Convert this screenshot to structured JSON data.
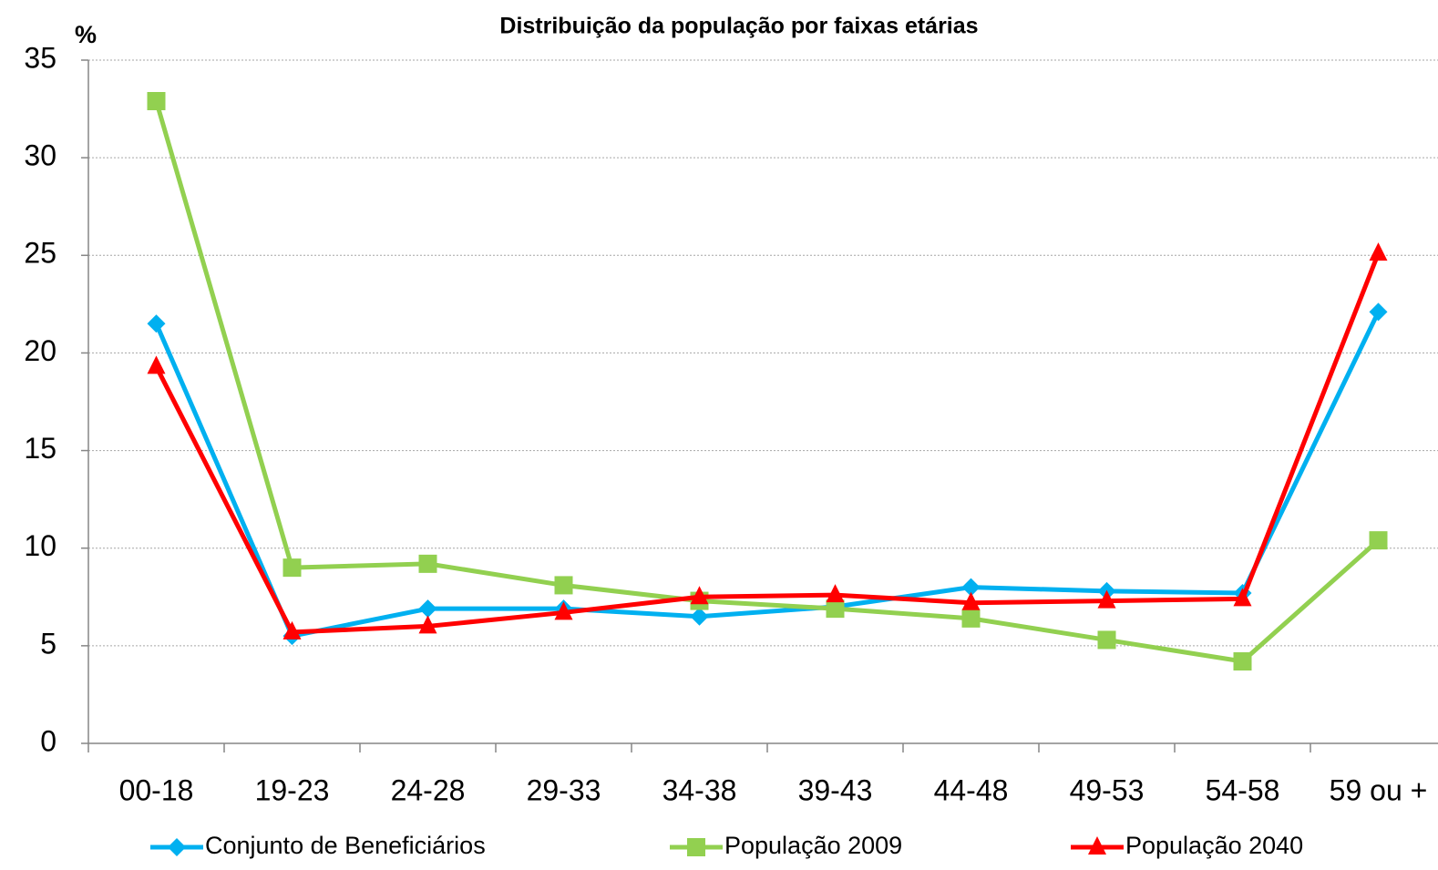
{
  "chart_data": {
    "type": "line",
    "title": "Distribuição da população por faixas etárias",
    "y_label": "%",
    "categories": [
      "00-18",
      "19-23",
      "24-28",
      "29-33",
      "34-38",
      "39-43",
      "44-48",
      "49-53",
      "54-58",
      "59 ou +"
    ],
    "series": [
      {
        "name": "Conjunto de Beneficiários",
        "color": "#00b0f0",
        "marker": "diamond",
        "values": [
          21.5,
          5.5,
          6.9,
          6.9,
          6.5,
          7.0,
          8.0,
          7.8,
          7.7,
          22.1
        ]
      },
      {
        "name": "População 2009",
        "color": "#92d050",
        "marker": "square",
        "values": [
          32.9,
          9.0,
          9.2,
          8.1,
          7.3,
          6.9,
          6.4,
          5.3,
          4.2,
          10.4
        ]
      },
      {
        "name": "População 2040",
        "color": "#ff0000",
        "marker": "triangle",
        "values": [
          19.3,
          5.7,
          6.0,
          6.7,
          7.5,
          7.6,
          7.2,
          7.3,
          7.4,
          25.1
        ]
      }
    ],
    "ylim": [
      0,
      35
    ],
    "yticks": [
      0,
      5,
      10,
      15,
      20,
      25,
      30,
      35
    ],
    "grid": true,
    "legend": "bottom"
  }
}
